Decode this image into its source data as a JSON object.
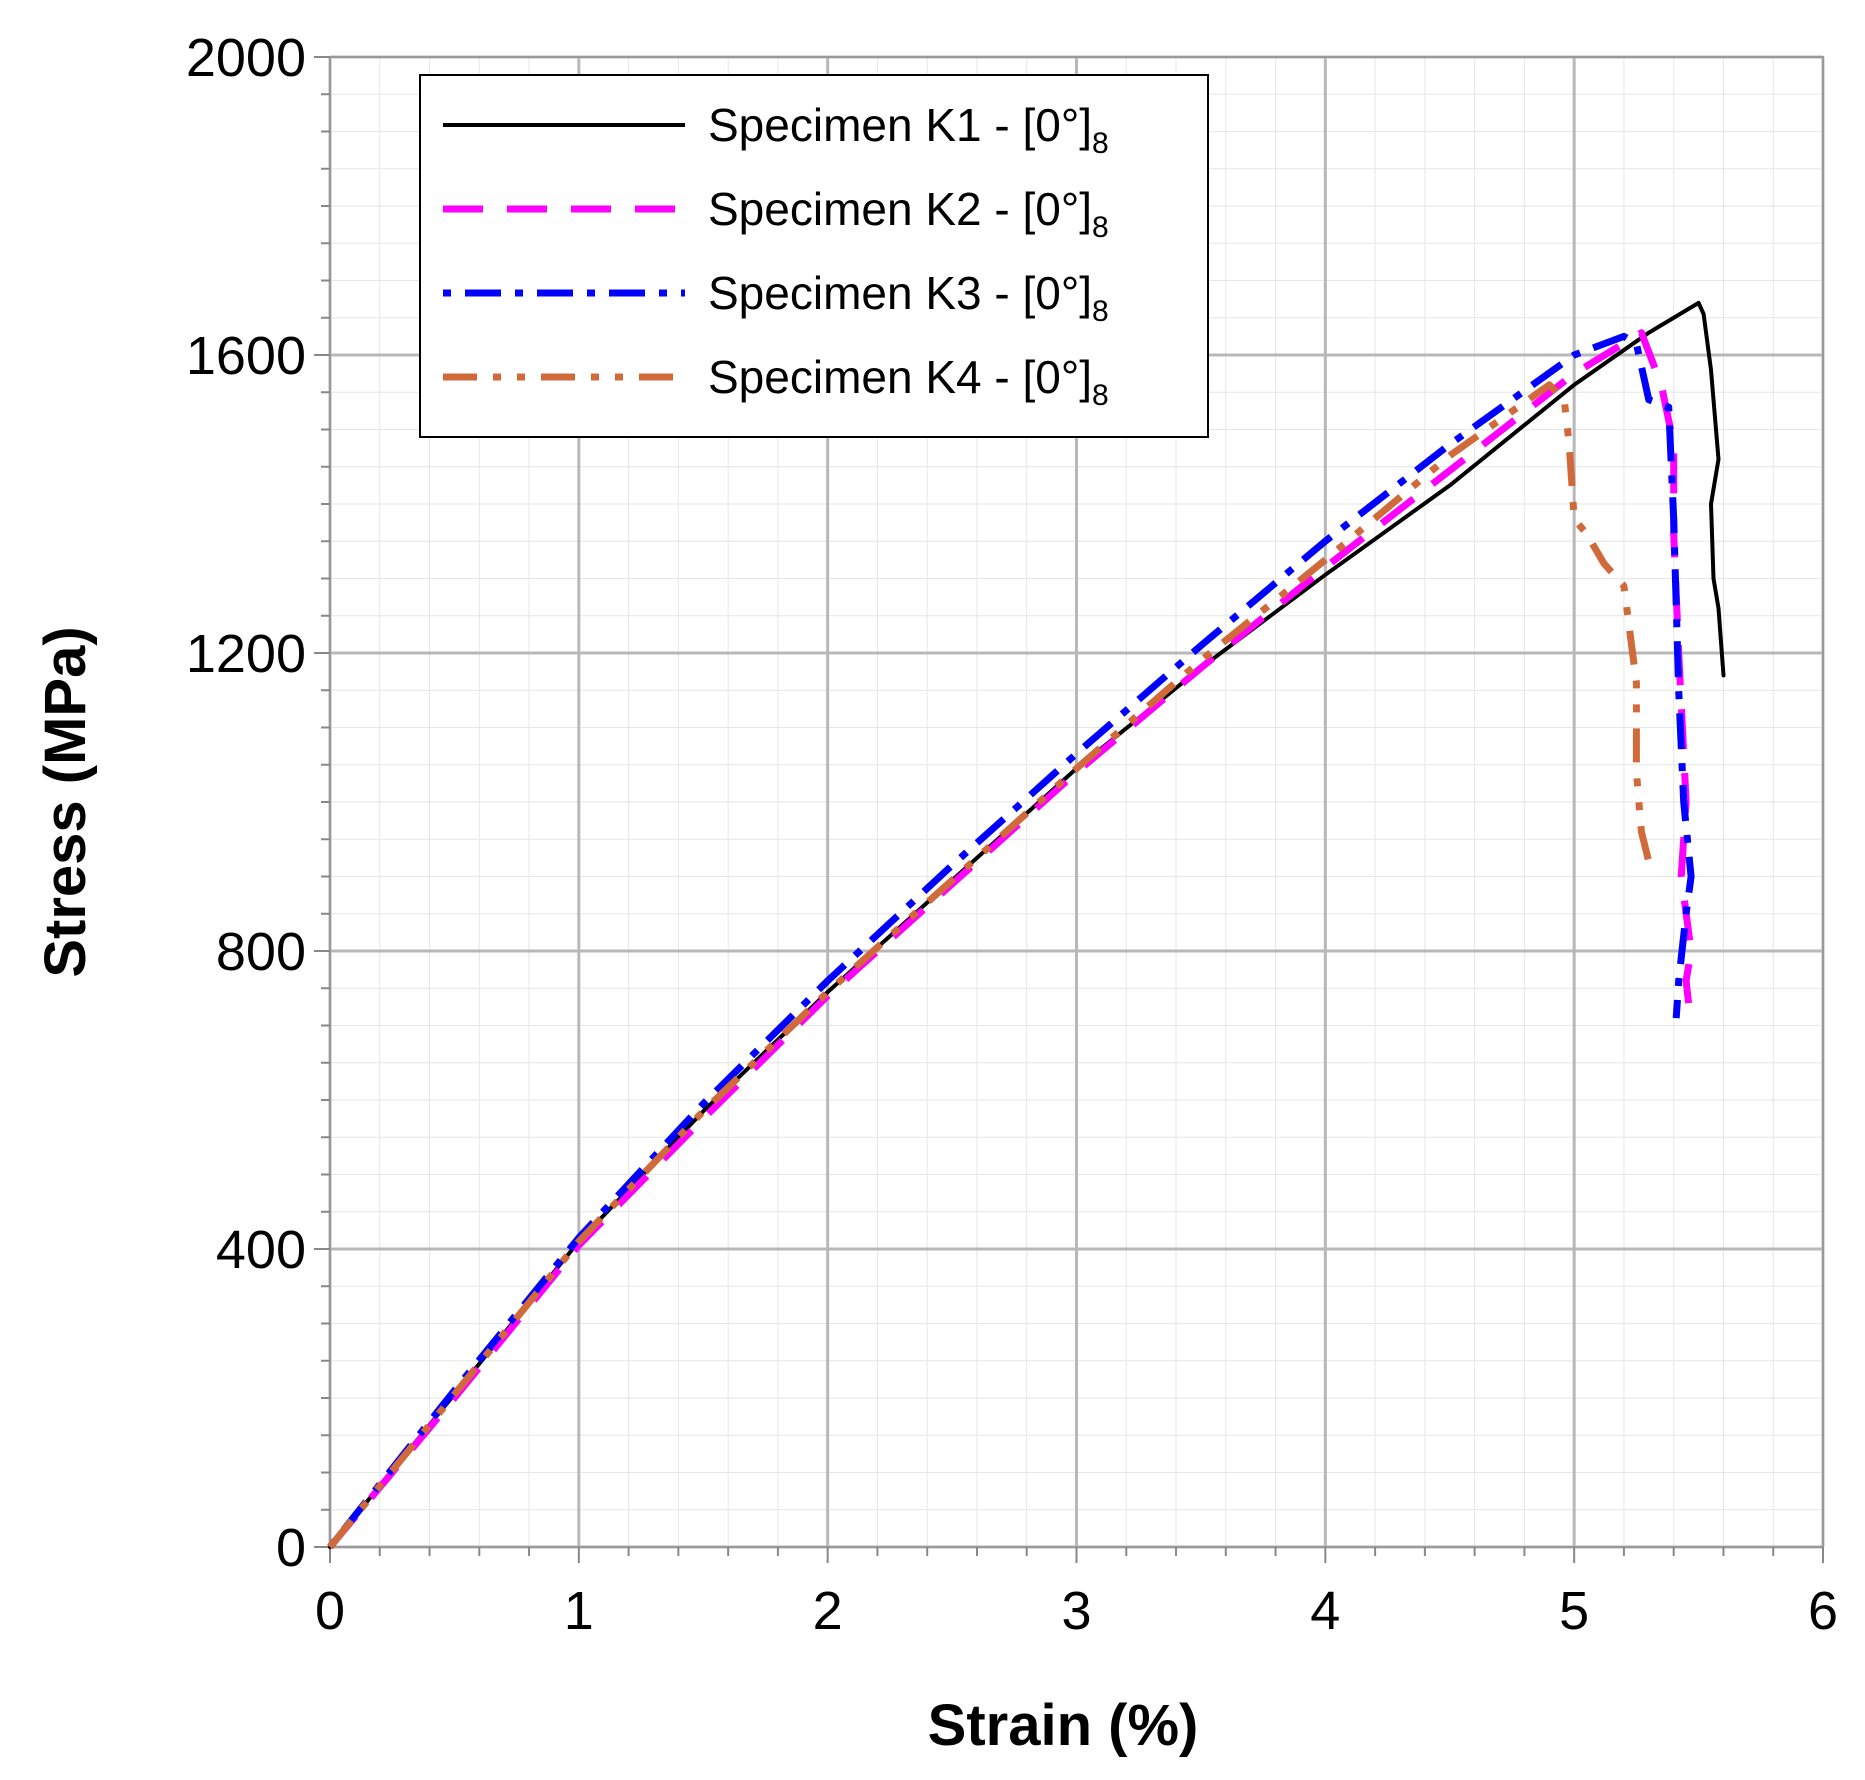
{
  "chart_data": {
    "type": "line",
    "title": "",
    "xlabel": "Strain (%)",
    "ylabel": "Stress (MPa)",
    "xlim": [
      0,
      6
    ],
    "ylim": [
      0,
      2000
    ],
    "x_ticks": [
      "0",
      "1",
      "2",
      "3",
      "4",
      "5",
      "6"
    ],
    "y_ticks": [
      "0",
      "400",
      "800",
      "1200",
      "1600",
      "2000"
    ],
    "grid": true,
    "legend_position": "top-left",
    "series": [
      {
        "name": "Specimen K1 - [0°]",
        "subscript": "8",
        "color": "#000000",
        "style": "solid",
        "x": [
          0,
          0.5,
          1.0,
          1.5,
          2.0,
          2.5,
          3.0,
          3.5,
          4.0,
          4.5,
          5.0,
          5.3,
          5.5,
          5.52,
          5.55,
          5.58,
          5.55,
          5.56,
          5.58,
          5.6
        ],
        "y": [
          0,
          205,
          410,
          585,
          745,
          895,
          1045,
          1180,
          1305,
          1425,
          1560,
          1630,
          1670,
          1655,
          1580,
          1460,
          1400,
          1300,
          1260,
          1170
        ]
      },
      {
        "name": "Specimen K2 - [0°]",
        "subscript": "8",
        "color": "#ff00ff",
        "style": "dashed",
        "x": [
          0,
          0.5,
          1.0,
          1.5,
          2.0,
          2.5,
          3.0,
          3.5,
          4.0,
          4.5,
          5.0,
          5.27,
          5.35,
          5.4,
          5.4,
          5.42,
          5.45,
          5.43,
          5.47,
          5.45,
          5.46
        ],
        "y": [
          0,
          200,
          405,
          575,
          740,
          890,
          1040,
          1180,
          1315,
          1445,
          1575,
          1630,
          1560,
          1480,
          1360,
          1200,
          1000,
          900,
          800,
          760,
          730
        ]
      },
      {
        "name": "Specimen K3 - [0°]",
        "subscript": "8",
        "color": "#0000ff",
        "style": "dashdot",
        "x": [
          0,
          0.5,
          1.0,
          1.5,
          2.0,
          2.5,
          3.0,
          3.5,
          4.0,
          4.5,
          5.0,
          5.2,
          5.25,
          5.3,
          5.38,
          5.4,
          5.42,
          5.44,
          5.47,
          5.45,
          5.42,
          5.41
        ],
        "y": [
          0,
          210,
          415,
          595,
          760,
          915,
          1065,
          1210,
          1350,
          1480,
          1600,
          1625,
          1615,
          1540,
          1530,
          1380,
          1150,
          1000,
          900,
          850,
          760,
          710
        ]
      },
      {
        "name": "Specimen K4 - [0°]",
        "subscript": "8",
        "color": "#d06a3a",
        "style": "dashdotted-dots",
        "x": [
          0,
          0.5,
          1.0,
          1.5,
          2.0,
          2.5,
          3.0,
          3.5,
          4.0,
          4.5,
          4.9,
          4.96,
          4.98,
          5.0,
          5.05,
          5.12,
          5.2,
          5.25,
          5.25,
          5.27,
          5.3
        ],
        "y": [
          0,
          205,
          410,
          585,
          745,
          895,
          1045,
          1190,
          1325,
          1465,
          1560,
          1540,
          1480,
          1380,
          1360,
          1320,
          1290,
          1160,
          1040,
          960,
          920
        ]
      }
    ]
  }
}
